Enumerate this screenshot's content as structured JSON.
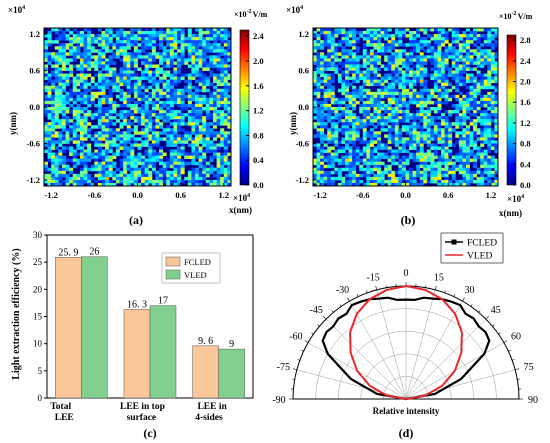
{
  "chart_data": [
    {
      "type": "heatmap",
      "panel_label": "(a)",
      "xlabel": "x(nm)",
      "ylabel": "y(nm)",
      "x_exponent": "×10",
      "y_exponent": "×10",
      "exponent_power": "4",
      "x_ticks": [
        "-1.2",
        "-0.6",
        "0.0",
        "0.6",
        "1.2"
      ],
      "y_ticks": [
        "1.2",
        "0.6",
        "0.0",
        "-0.6",
        "-1.2"
      ],
      "xlim": [
        -1.3,
        1.3
      ],
      "ylim": [
        -1.3,
        1.3
      ],
      "colorbar": {
        "unit_prefix": "×10",
        "unit_power": "-2",
        "unit": "V/m",
        "ticks": [
          "2.4",
          "2.0",
          "1.6",
          "1.2",
          "0.8",
          "0.4",
          "0.0"
        ],
        "range": [
          0,
          2.5
        ]
      }
    },
    {
      "type": "heatmap",
      "panel_label": "(b)",
      "xlabel": "x(nm)",
      "ylabel": "y(nm)",
      "x_exponent": "×10",
      "y_exponent": "×10",
      "exponent_power": "4",
      "x_ticks": [
        "-1.2",
        "-0.6",
        "0.0",
        "0.6",
        "1.2"
      ],
      "y_ticks": [
        "1.2",
        "0.6",
        "0.0",
        "-0.6",
        "-1.2"
      ],
      "xlim": [
        -1.3,
        1.3
      ],
      "ylim": [
        -1.3,
        1.3
      ],
      "colorbar": {
        "unit_prefix": "×10",
        "unit_power": "-2",
        "unit": "V/m",
        "ticks": [
          "2.8",
          "2.4",
          "2.0",
          "1.6",
          "1.2",
          "0.8",
          "0.4",
          "0.0"
        ],
        "range": [
          0,
          2.9
        ]
      }
    },
    {
      "type": "bar",
      "panel_label": "(c)",
      "ylabel": "Light extraction efficiency (%)",
      "ylim": [
        0,
        30
      ],
      "y_ticks": [
        0,
        5,
        10,
        15,
        20,
        25,
        30
      ],
      "categories": [
        [
          "Total",
          "LEE"
        ],
        [
          "LEE in top",
          "surface"
        ],
        [
          "LEE in",
          "4-sides"
        ]
      ],
      "legend_position": "top-right",
      "series": [
        {
          "name": "FCLED",
          "color": "#f9c79a",
          "values": [
            25.9,
            16.3,
            9.6
          ],
          "labels": [
            "25. 9",
            "16. 3",
            "9. 6"
          ]
        },
        {
          "name": "VLED",
          "color": "#82d08e",
          "values": [
            26,
            17,
            9
          ],
          "labels": [
            "26",
            "17",
            "9"
          ]
        }
      ]
    },
    {
      "type": "polar",
      "panel_label": "(d)",
      "xlabel": "Relative intensity",
      "angle_ticks": [
        "0",
        "15",
        "-15",
        "30",
        "-30",
        "45",
        "-45",
        "60",
        "-60",
        "75",
        "-75",
        "90",
        "-90"
      ],
      "angle_range": [
        -90,
        90
      ],
      "legend_position": "top-center",
      "series": [
        {
          "name": "FCLED",
          "color": "#000000",
          "marker": "square",
          "angles": [
            -90,
            -80,
            -70,
            -60,
            -55,
            -50,
            -45,
            -40,
            -35,
            -30,
            -25,
            -20,
            -15,
            -10,
            -5,
            0,
            5,
            10,
            15,
            20,
            25,
            30,
            35,
            40,
            45,
            50,
            55,
            60,
            70,
            80,
            90
          ],
          "values": [
            0.0,
            0.26,
            0.52,
            0.8,
            0.9,
            0.92,
            0.91,
            0.93,
            0.92,
            0.96,
            0.95,
            0.94,
            0.92,
            0.91,
            0.88,
            0.88,
            0.88,
            0.91,
            0.92,
            0.94,
            0.95,
            0.96,
            0.92,
            0.93,
            0.91,
            0.92,
            0.9,
            0.8,
            0.52,
            0.26,
            0.0
          ]
        },
        {
          "name": "VLED",
          "color": "#e8262b",
          "marker": "none",
          "angles": [
            -90,
            -80,
            -70,
            -60,
            -50,
            -40,
            -30,
            -20,
            -10,
            0,
            10,
            20,
            30,
            40,
            50,
            60,
            70,
            80,
            90
          ],
          "values": [
            0.0,
            0.17,
            0.34,
            0.5,
            0.64,
            0.77,
            0.87,
            0.94,
            0.98,
            1.0,
            0.98,
            0.94,
            0.87,
            0.77,
            0.64,
            0.5,
            0.34,
            0.17,
            0.0
          ]
        }
      ]
    }
  ]
}
